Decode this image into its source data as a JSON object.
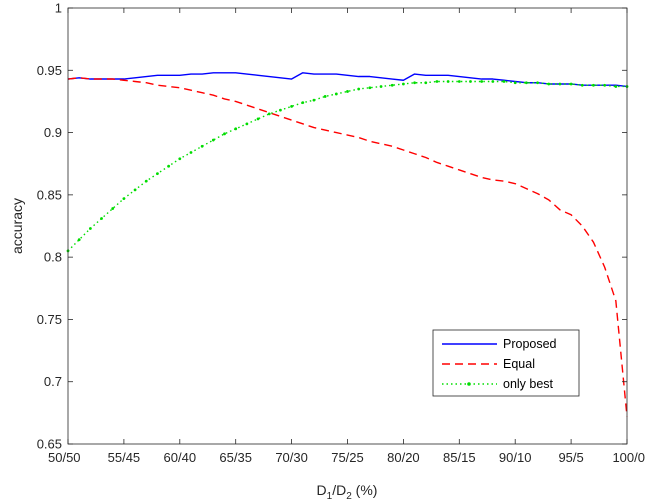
{
  "chart_data": {
    "type": "line",
    "xlabel": "D1/D2 (%)",
    "xlabel_parts": {
      "d": "D",
      "sub1": "1",
      "slash": "/",
      "sub2": "2",
      "unit": " (%)"
    },
    "ylabel": "accuracy",
    "ylim": [
      0.65,
      1
    ],
    "yticks": [
      "0.65",
      "0.7",
      "0.75",
      "0.8",
      "0.85",
      "0.9",
      "0.95",
      "1"
    ],
    "xticks": [
      "50/50",
      "55/45",
      "60/40",
      "65/35",
      "70/30",
      "75/25",
      "80/20",
      "85/15",
      "90/10",
      "95/5",
      "100/0"
    ],
    "xlim": [
      50,
      100
    ],
    "grid": false,
    "legend_position": "bottom-right",
    "series": [
      {
        "name": "Proposed",
        "color": "#0000ff",
        "style": "solid",
        "x": [
          50,
          51,
          52,
          53,
          54,
          55,
          56,
          57,
          58,
          59,
          60,
          61,
          62,
          63,
          64,
          65,
          66,
          67,
          68,
          69,
          70,
          71,
          72,
          73,
          74,
          75,
          76,
          77,
          78,
          79,
          80,
          81,
          82,
          83,
          84,
          85,
          86,
          87,
          88,
          89,
          90,
          91,
          92,
          93,
          94,
          95,
          96,
          97,
          98,
          99,
          100
        ],
        "y": [
          0.943,
          0.944,
          0.943,
          0.943,
          0.943,
          0.943,
          0.944,
          0.945,
          0.946,
          0.946,
          0.946,
          0.947,
          0.947,
          0.948,
          0.948,
          0.948,
          0.947,
          0.946,
          0.945,
          0.944,
          0.943,
          0.948,
          0.947,
          0.947,
          0.947,
          0.946,
          0.945,
          0.945,
          0.944,
          0.943,
          0.942,
          0.947,
          0.946,
          0.946,
          0.946,
          0.945,
          0.944,
          0.943,
          0.943,
          0.942,
          0.941,
          0.94,
          0.94,
          0.939,
          0.939,
          0.939,
          0.938,
          0.938,
          0.938,
          0.938,
          0.937
        ]
      },
      {
        "name": "Equal",
        "color": "#ff0000",
        "style": "dashed",
        "x": [
          50,
          51,
          52,
          53,
          54,
          55,
          56,
          57,
          58,
          59,
          60,
          61,
          62,
          63,
          64,
          65,
          66,
          67,
          68,
          69,
          70,
          71,
          72,
          73,
          74,
          75,
          76,
          77,
          78,
          79,
          80,
          81,
          82,
          83,
          84,
          85,
          86,
          87,
          88,
          89,
          90,
          91,
          92,
          93,
          94,
          95,
          96,
          97,
          98,
          99,
          100
        ],
        "y": [
          0.943,
          0.944,
          0.943,
          0.943,
          0.943,
          0.942,
          0.941,
          0.94,
          0.938,
          0.937,
          0.936,
          0.934,
          0.932,
          0.93,
          0.927,
          0.925,
          0.922,
          0.919,
          0.916,
          0.913,
          0.91,
          0.907,
          0.904,
          0.902,
          0.9,
          0.898,
          0.896,
          0.893,
          0.891,
          0.889,
          0.886,
          0.883,
          0.88,
          0.876,
          0.873,
          0.87,
          0.867,
          0.864,
          0.862,
          0.861,
          0.859,
          0.855,
          0.851,
          0.846,
          0.838,
          0.834,
          0.825,
          0.812,
          0.792,
          0.765,
          0.672
        ]
      },
      {
        "name": "only best",
        "color": "#00dd00",
        "style": "dotted-markers",
        "x": [
          50,
          51,
          52,
          53,
          54,
          55,
          56,
          57,
          58,
          59,
          60,
          61,
          62,
          63,
          64,
          65,
          66,
          67,
          68,
          69,
          70,
          71,
          72,
          73,
          74,
          75,
          76,
          77,
          78,
          79,
          80,
          81,
          82,
          83,
          84,
          85,
          86,
          87,
          88,
          89,
          90,
          91,
          92,
          93,
          94,
          95,
          96,
          97,
          98,
          99,
          100
        ],
        "y": [
          0.805,
          0.814,
          0.823,
          0.831,
          0.839,
          0.847,
          0.854,
          0.861,
          0.867,
          0.873,
          0.879,
          0.884,
          0.889,
          0.894,
          0.899,
          0.903,
          0.907,
          0.911,
          0.915,
          0.918,
          0.921,
          0.924,
          0.926,
          0.929,
          0.931,
          0.933,
          0.935,
          0.936,
          0.937,
          0.938,
          0.939,
          0.94,
          0.94,
          0.941,
          0.941,
          0.941,
          0.941,
          0.941,
          0.941,
          0.941,
          0.94,
          0.94,
          0.94,
          0.939,
          0.939,
          0.939,
          0.938,
          0.938,
          0.938,
          0.937,
          0.937
        ]
      }
    ]
  }
}
